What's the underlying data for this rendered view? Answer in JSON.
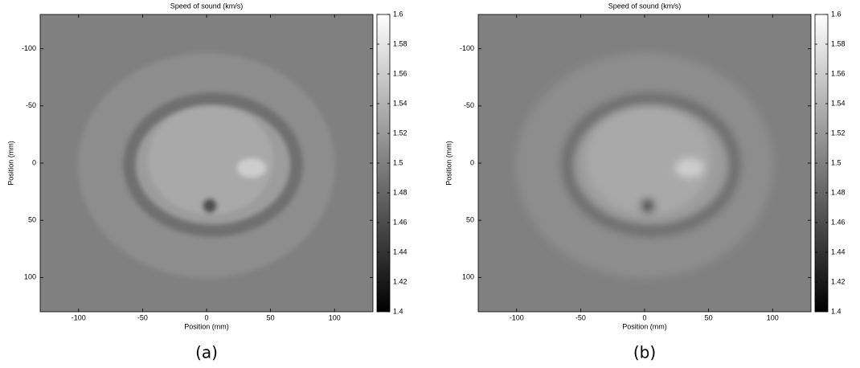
{
  "chart_data": [
    {
      "type": "heatmap",
      "title": "Speed of sound (km/s)",
      "xlabel": "Position (mm)",
      "ylabel": "Position (mm)",
      "xlim": [
        -130,
        130
      ],
      "ylim": [
        -130,
        130
      ],
      "y_reversed": true,
      "xticks": [
        -100,
        -50,
        0,
        50,
        100
      ],
      "yticks": [
        -100,
        -50,
        0,
        50,
        100
      ],
      "colormap": "gray",
      "clim": [
        1.4,
        1.6
      ],
      "cticks": [
        1.4,
        1.42,
        1.44,
        1.46,
        1.48,
        1.5,
        1.52,
        1.54,
        1.56,
        1.58,
        1.6
      ],
      "caption": "(a)"
    },
    {
      "type": "heatmap",
      "title": "Speed of sound (km/s)",
      "xlabel": "Position (mm)",
      "ylabel": "Position (mm)",
      "xlim": [
        -130,
        130
      ],
      "ylim": [
        -130,
        130
      ],
      "y_reversed": true,
      "xticks": [
        -100,
        -50,
        0,
        50,
        100
      ],
      "yticks": [
        -100,
        -50,
        0,
        50,
        100
      ],
      "colormap": "gray",
      "clim": [
        1.4,
        1.6
      ],
      "cticks": [
        1.4,
        1.42,
        1.44,
        1.46,
        1.48,
        1.5,
        1.52,
        1.54,
        1.56,
        1.58,
        1.6
      ],
      "caption": "(b)"
    }
  ]
}
